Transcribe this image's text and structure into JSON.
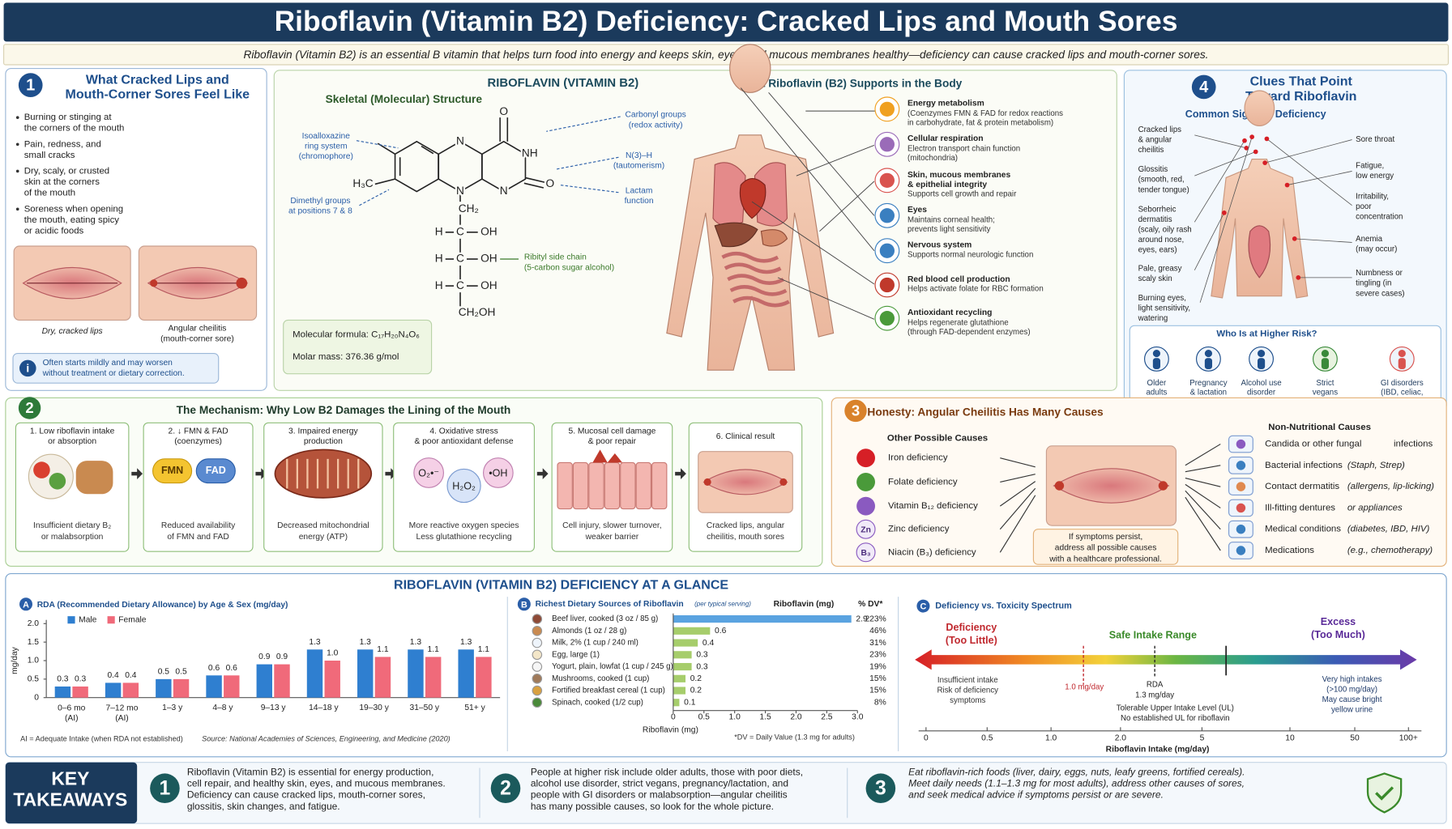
{
  "header": {
    "title": "Riboflavin (Vitamin B2) Deficiency: Cracked Lips and Mouth Sores",
    "subtitle": "Riboflavin (Vitamin B2) is an essential B vitamin that helps turn food into energy and keeps skin, eyes, and mucous membranes healthy—deficiency can cause cracked lips and mouth-corner sores."
  },
  "symptoms": {
    "number": "1",
    "title": "What Cracked Lips and\nMouth-Corner Sores Feel Like",
    "bullets": [
      "Burning or stinging at\nthe corners of the mouth",
      "Pain, redness, and\nsmall cracks",
      "Dry, scaly, or crusted\nskin at the corners\nof the mouth",
      "Soreness when opening\nthe mouth, eating spicy\nor acidic foods"
    ],
    "captions": [
      "Dry, cracked lips",
      "Angular cheilitis\n(mouth-corner sore)"
    ],
    "note": "Often starts mildly and may worsen\nwithout treatment or dietary correction."
  },
  "molecule": {
    "title": "RIBOFLAVIN (VITAMIN B2)",
    "subtitle": "Skeletal (Molecular) Structure",
    "atoms": [
      "N",
      "NH",
      "O",
      "N",
      "O",
      "H₃C",
      "N",
      "CH₂",
      "H",
      "C",
      "OH",
      "H",
      "C",
      "OH",
      "H",
      "C",
      "OH",
      "CH₂OH"
    ],
    "annotations": [
      "Isoalloxazine\nring system\n(chromophore)",
      "Dimethyl groups\nat positions 7 & 8",
      "Carbonyl groups\n(redox activity)",
      "N(3)–H\n(tautomerism)",
      "Lactam\nfunction",
      "Ribityl side chain\n(5-carbon sugar alcohol)"
    ],
    "formula": "Molecular formula: C₁₇H₂₀N₄O₆",
    "molar_mass": "Molar mass: 376.36 g/mol"
  },
  "body": {
    "title": "What Riboflavin (B2) Supports in the Body",
    "items": [
      {
        "title": "Energy metabolism",
        "text": "(Coenzymes FMN & FAD for redox reactions\nin carbohydrate, fat & protein metabolism)"
      },
      {
        "title": "Cellular respiration",
        "text": "Electron transport chain function\n(mitochondria)"
      },
      {
        "title": "Skin, mucous membranes\n& epithelial integrity",
        "text": "Supports cell growth and repair"
      },
      {
        "title": "Eyes",
        "text": "Maintains corneal health;\nprevents light sensitivity"
      },
      {
        "title": "Nervous system",
        "text": "Supports normal neurologic function"
      },
      {
        "title": "Red blood cell production",
        "text": "Helps activate folate for RBC formation"
      },
      {
        "title": "Antioxidant recycling",
        "text": "Helps regenerate glutathione\n(through FAD-dependent enzymes)"
      }
    ]
  },
  "clues": {
    "number": "4",
    "title": "Clues That Point\nToward Riboflavin",
    "subtitle": "Common Signs of Deficiency",
    "signs_left": [
      "Cracked lips\n& angular\ncheilitis",
      "Glossitis\n(smooth, red,\ntender tongue)",
      "Seborrheic\ndermatitis\n(scaly, oily rash\naround nose,\neyes, ears)",
      "Pale, greasy\nscaly skin",
      "Burning eyes,\nlight sensitivity,\nwatering"
    ],
    "signs_right": [
      "Sore throat",
      "Fatigue,\nlow energy",
      "Irritability,\npoor\nconcentration",
      "Anemia\n(may occur)",
      "Numbness or\ntingling (in\nsevere cases)"
    ],
    "risk_title": "Who Is at Higher Risk?",
    "risk_groups": [
      "Older\nadults",
      "Pregnancy\n& lactation",
      "Alcohol use\ndisorder",
      "Strict\nvegans",
      "GI disorders\n(IBD, celiac,\nbariatric surgery)"
    ]
  },
  "mechanism": {
    "number": "2",
    "title": "The Mechanism: Why Low B2 Damages the Lining of the Mouth",
    "steps": [
      {
        "title": "1. Low riboflavin intake\nor absorption",
        "caption": "Insufficient dietary B₂\nor malabsorption"
      },
      {
        "title": "2. ↓ FMN & FAD\n(coenzymes)",
        "caption": "Reduced availability\nof FMN and FAD"
      },
      {
        "title": "3. Impaired energy\nproduction",
        "caption": "Decreased mitochondrial\nenergy (ATP)"
      },
      {
        "title": "4. Oxidative stress\n& poor antioxidant defense",
        "caption": "More reactive oxygen species\nLess glutathione recycling"
      },
      {
        "title": "5. Mucosal cell damage\n& poor repair",
        "caption": "Cell injury, slower turnover,\nweaker barrier"
      },
      {
        "title": "6. Clinical result",
        "caption": "Cracked lips, angular\ncheilitis, mouth sores"
      }
    ],
    "labels": [
      "FMN",
      "FAD",
      "O₂•⁻",
      "H₂O₂",
      "•OH"
    ]
  },
  "causes": {
    "number": "3",
    "title": "Honesty: Angular Cheilitis Has Many Causes",
    "other_title": "Other Possible Causes",
    "other": [
      {
        "name": "Iron deficiency"
      },
      {
        "name": "Folate deficiency"
      },
      {
        "name": "Vitamin B₁₂ deficiency"
      },
      {
        "name": "Zinc deficiency",
        "icon": "Zn"
      },
      {
        "name": "Niacin (B₃) deficiency",
        "icon": "B₃"
      }
    ],
    "note": "If symptoms persist,\naddress all possible causes\nwith a healthcare professional.",
    "non_title": "Non-Nutritional Causes",
    "non": [
      {
        "name": "Candida or other fungal",
        "detail": "infections"
      },
      {
        "name": "Bacterial infections",
        "detail": "(Staph, Strep)"
      },
      {
        "name": "Contact dermatitis",
        "detail": "(allergens, lip-licking)"
      },
      {
        "name": "Ill-fitting dentures",
        "detail": "or appliances"
      },
      {
        "name": "Medical conditions",
        "detail": "(diabetes, IBD, HIV)"
      },
      {
        "name": "Medications",
        "detail": "(e.g., chemotherapy)"
      }
    ]
  },
  "glance": {
    "title": "RIBOFLAVIN (VITAMIN B2) DEFICIENCY AT A GLANCE",
    "spectrum": {
      "label": "C",
      "title": "Deficiency vs. Toxicity Spectrum",
      "zones": [
        "Deficiency\n(Too Little)",
        "Safe Intake Range",
        "Excess\n(Too Much)"
      ],
      "left_note": "Insufficient intake\nRisk of deficiency\nsymptoms",
      "markers": [
        "1.0 mg/day",
        "RDA\n1.3 mg/day",
        "Tolerable Upper Intake Level (UL)\nNo established UL for riboflavin"
      ],
      "right_note": "Very high intakes\n(>100 mg/day)\nMay cause bright\nyellow urine",
      "ticks": [
        "0",
        "0.5",
        "1.0",
        "2.0",
        "5",
        "10",
        "50",
        "100+"
      ],
      "xlabel": "Riboflavin Intake (mg/day)"
    }
  },
  "chart_data": [
    {
      "type": "bar",
      "label": "A",
      "title": "RDA (Recommended Dietary Allowance) by Age & Sex (mg/day)",
      "ylabel": "mg/day",
      "categories": [
        "0–6 mo\n(AI)",
        "7–12 mo\n(AI)",
        "1–3 y",
        "4–8 y",
        "9–13 y",
        "14–18 y",
        "19–30 y",
        "31–50 y",
        "51+ y"
      ],
      "series": [
        {
          "name": "Male",
          "color": "#2f7fd0",
          "values": [
            0.3,
            0.4,
            0.5,
            0.6,
            0.9,
            1.3,
            1.3,
            1.3,
            1.3
          ]
        },
        {
          "name": "Female",
          "color": "#f06a7a",
          "values": [
            0.3,
            0.4,
            0.5,
            0.6,
            0.9,
            1.0,
            1.1,
            1.1,
            1.1
          ],
          "value_labels": [
            "0.3",
            "0.4",
            "0.5",
            "0.6",
            "0.9",
            "1.0",
            "1.1",
            "1.1",
            "1.1"
          ]
        }
      ],
      "ylim": [
        0,
        2
      ],
      "yticks": [
        0,
        0.5,
        {
          "value": 1,
          "label": "1.0"
        },
        1.5,
        {
          "value": 2,
          "label": "2.0"
        }
      ],
      "legend": "top-left",
      "notes": [
        "AI = Adequate Intake (when RDA not established)",
        "Source: National Academies of Sciences, Engineering, and Medicine (2020)"
      ]
    },
    {
      "type": "barh",
      "label": "B",
      "title": "Richest Dietary Sources of Riboflavin",
      "title_note": "(per typical serving)",
      "value_header": "Riboflavin (mg)",
      "dv_header": "% DV*",
      "categories": [
        "Beef liver, cooked (3 oz / 85 g)",
        "Almonds (1 oz / 28 g)",
        "Milk, 2% (1 cup / 240 ml)",
        "Egg, large (1)",
        "Yogurt, plain, lowfat (1 cup / 245 g)",
        "Mushrooms, cooked (1 cup)",
        "Fortified breakfast cereal (1 cup)",
        "Spinach, cooked (1/2 cup)"
      ],
      "values": [
        2.9,
        0.6,
        0.4,
        0.3,
        0.3,
        0.2,
        0.2,
        0.1
      ],
      "colors": [
        "#5aa3e0",
        "#a6cd6b",
        "#a6cd6b",
        "#a6cd6b",
        "#a6cd6b",
        "#a6cd6b",
        "#a6cd6b",
        "#a6cd6b"
      ],
      "percent_dv": [
        "223%",
        "46%",
        "31%",
        "23%",
        "19%",
        "15%",
        "15%",
        "8%"
      ],
      "xlim": [
        0,
        3
      ],
      "xticks": [
        0,
        0.5,
        {
          "value": 1,
          "label": "1.0"
        },
        1.5,
        {
          "value": 2,
          "label": "2.0"
        },
        2.5,
        {
          "value": 3,
          "label": "3.0"
        }
      ],
      "xlabel": "Riboflavin (mg)",
      "footnote": "*DV = Daily Value (1.3 mg for adults)"
    }
  ],
  "takeaways": {
    "title": "KEY\nTAKEAWAYS",
    "items": [
      {
        "number": "1",
        "text": "Riboflavin (Vitamin B2) is essential for energy production,\ncell repair, and healthy skin, eyes, and mucous membranes.\nDeficiency can cause cracked lips, mouth-corner sores,\nglossitis, skin changes, and fatigue."
      },
      {
        "number": "2",
        "text": "People at higher risk include older adults, those with poor diets,\nalcohol use disorder, strict vegans, pregnancy/lactation, and\npeople with GI disorders or malabsorption—angular cheilitis\nhas many possible causes, so look for the whole picture."
      },
      {
        "number": "3",
        "text": "Eat riboflavin-rich foods (liver, dairy, eggs, nuts, leafy greens, fortified cereals).\nMeet daily needs (1.1–1.3 mg for most adults), address other causes of sores,\nand seek medical advice if symptoms persist or are severe."
      }
    ]
  }
}
